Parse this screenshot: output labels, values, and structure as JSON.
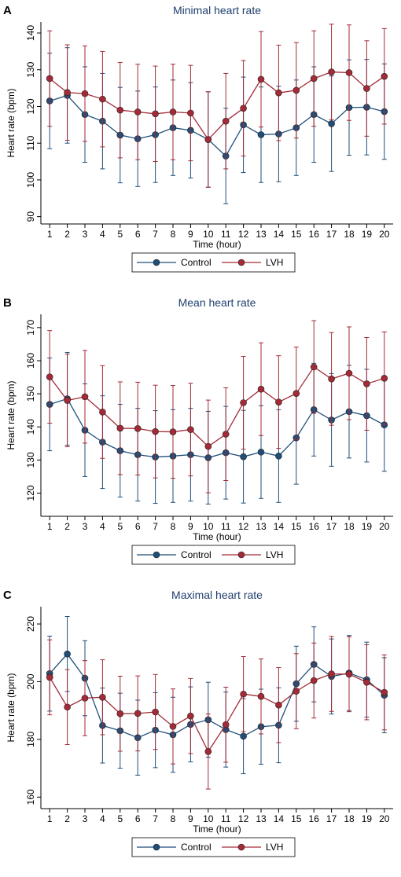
{
  "colors": {
    "control": "#1f4e79",
    "lvh": "#a32a36",
    "axis": "#000000"
  },
  "chart_data": [
    {
      "panel_letter": "A",
      "type": "line",
      "title": "Minimal heart rate",
      "xlabel": "Time (hour)",
      "ylabel": "Heart rate (bpm)",
      "x": [
        1,
        2,
        3,
        4,
        5,
        6,
        7,
        8,
        9,
        10,
        11,
        12,
        13,
        14,
        15,
        16,
        17,
        18,
        19,
        20
      ],
      "ylim": [
        88,
        143
      ],
      "yticks": [
        90,
        100,
        110,
        120,
        130,
        140
      ],
      "grid": false,
      "legend_position": "bottom",
      "series": [
        {
          "name": "Control",
          "color_key": "control",
          "values": [
            121.5,
            123,
            117.8,
            116,
            112.2,
            111.2,
            112.3,
            114.2,
            113.5,
            111,
            106.5,
            115,
            112.3,
            112.5,
            114.2,
            117.8,
            115.3,
            119.7,
            119.8,
            118.6
          ],
          "lower": [
            108.5,
            110,
            104.8,
            103,
            99.2,
            98.2,
            99.3,
            101.2,
            100.5,
            98,
            93.5,
            102,
            99.3,
            99.5,
            101.2,
            104.8,
            102.3,
            106.7,
            106.8,
            105.6
          ],
          "upper": [
            134.5,
            136,
            130.8,
            129,
            125.2,
            124.2,
            125.3,
            127.2,
            126.5,
            124,
            119.5,
            128,
            125.3,
            125.5,
            127.2,
            130.8,
            128.3,
            132.7,
            132.8,
            131.6
          ]
        },
        {
          "name": "LVH",
          "color_key": "lvh",
          "values": [
            127.6,
            123.8,
            123.5,
            122,
            119,
            118.5,
            118,
            118.5,
            118.2,
            111,
            116,
            119.5,
            127.4,
            123.7,
            124.4,
            127.6,
            129.4,
            129.2,
            124.9,
            128.2
          ],
          "lower": [
            114.6,
            110.8,
            110.5,
            109,
            106,
            105.5,
            105,
            105.5,
            105.2,
            98,
            103,
            106.5,
            114.4,
            110.7,
            111.4,
            114.6,
            116.4,
            116.2,
            111.9,
            115.2
          ],
          "upper": [
            140.6,
            136.8,
            136.5,
            135,
            132,
            131.5,
            131,
            131.5,
            131.2,
            124,
            129,
            132.5,
            140.4,
            136.7,
            137.4,
            140.6,
            142.4,
            142.2,
            137.9,
            141.2
          ]
        }
      ]
    },
    {
      "panel_letter": "B",
      "type": "line",
      "title": "Mean heart rate",
      "xlabel": "Time (hour)",
      "ylabel": "Heart rate (bpm)",
      "x": [
        1,
        2,
        3,
        4,
        5,
        6,
        7,
        8,
        9,
        10,
        11,
        12,
        13,
        14,
        15,
        16,
        17,
        18,
        19,
        20
      ],
      "ylim": [
        113,
        174
      ],
      "yticks": [
        120,
        130,
        140,
        150,
        160,
        170
      ],
      "grid": false,
      "legend_position": "bottom",
      "series": [
        {
          "name": "Control",
          "color_key": "control",
          "values": [
            146.8,
            148.5,
            139,
            135.4,
            132.8,
            131.6,
            130.9,
            131.2,
            131.6,
            130.7,
            132.2,
            131,
            132.4,
            131.2,
            136.7,
            145.2,
            142.1,
            144.6,
            143.4,
            140.6
          ],
          "lower": [
            132.8,
            134.5,
            125,
            121.4,
            118.8,
            117.6,
            116.9,
            117.2,
            117.6,
            116.7,
            118.2,
            117,
            118.4,
            117.2,
            122.7,
            131.2,
            128.1,
            130.6,
            129.4,
            126.6
          ],
          "upper": [
            160.8,
            162.5,
            153,
            149.4,
            146.8,
            145.6,
            144.9,
            145.2,
            145.6,
            144.7,
            146.2,
            145,
            146.4,
            145.2,
            150.7,
            159.2,
            156.1,
            158.6,
            157.4,
            154.6
          ]
        },
        {
          "name": "LVH",
          "color_key": "lvh",
          "values": [
            155.1,
            148,
            149.1,
            144.5,
            139.6,
            139.5,
            138.6,
            138.5,
            139.2,
            134.1,
            137.8,
            147.3,
            151.4,
            147.5,
            150.1,
            158.1,
            154.5,
            156.2,
            153,
            154.7
          ],
          "lower": [
            141.1,
            134,
            135.1,
            130.5,
            125.6,
            125.5,
            124.6,
            124.5,
            125.2,
            120.1,
            123.8,
            133.3,
            137.4,
            133.5,
            136.1,
            144.1,
            140.5,
            142.2,
            139,
            140.7
          ],
          "upper": [
            169.1,
            162,
            163.1,
            158.5,
            153.6,
            153.5,
            152.6,
            152.5,
            153.2,
            148.1,
            151.8,
            161.3,
            165.4,
            161.5,
            164.1,
            172.1,
            168.5,
            170.2,
            167,
            168.7
          ]
        }
      ]
    },
    {
      "panel_letter": "C",
      "type": "line",
      "title": "Maximal heart rate",
      "xlabel": "Time (hour)",
      "ylabel": "Heart rate (bpm)",
      "x": [
        1,
        2,
        3,
        4,
        5,
        6,
        7,
        8,
        9,
        10,
        11,
        12,
        13,
        14,
        15,
        16,
        17,
        18,
        19,
        20
      ],
      "ylim": [
        156,
        226
      ],
      "yticks": [
        160,
        180,
        200,
        220
      ],
      "grid": false,
      "legend_position": "bottom",
      "series": [
        {
          "name": "Control",
          "color_key": "control",
          "values": [
            202.8,
            209.6,
            201.2,
            184.8,
            183,
            180.6,
            183.2,
            181.6,
            185.2,
            186.8,
            183.4,
            181.1,
            184.4,
            184.9,
            199.3,
            206,
            201.8,
            203,
            200.7,
            195.3
          ],
          "lower": [
            189.8,
            196.6,
            188.2,
            171.8,
            170,
            167.6,
            170.2,
            168.6,
            172.2,
            173.8,
            170.4,
            168.1,
            171.4,
            171.9,
            186.3,
            193,
            188.8,
            190,
            187.7,
            182.3
          ],
          "upper": [
            215.8,
            222.6,
            214.2,
            197.8,
            196,
            193.6,
            196.2,
            194.6,
            198.2,
            199.8,
            196.4,
            194.1,
            197.4,
            197.9,
            212.3,
            219,
            214.8,
            216,
            213.7,
            208.3
          ]
        },
        {
          "name": "LVH",
          "color_key": "lvh",
          "values": [
            201.5,
            191.2,
            194.3,
            194.6,
            188.9,
            189,
            189.5,
            184.5,
            188.1,
            175.8,
            185.1,
            195.7,
            194.9,
            191.9,
            196.7,
            200.4,
            202.7,
            202.6,
            199.8,
            196.3
          ],
          "lower": [
            188.5,
            178.2,
            181.3,
            181.6,
            175.9,
            176,
            176.5,
            171.5,
            175.1,
            162.8,
            172.1,
            182.7,
            181.9,
            178.9,
            183.7,
            187.4,
            189.7,
            189.6,
            186.8,
            183.3
          ],
          "upper": [
            214.5,
            204.2,
            207.3,
            207.6,
            201.9,
            202,
            202.5,
            197.5,
            201.1,
            188.8,
            198.1,
            208.7,
            207.9,
            204.9,
            209.7,
            213.4,
            215.7,
            215.6,
            212.8,
            209.3
          ]
        }
      ]
    }
  ]
}
